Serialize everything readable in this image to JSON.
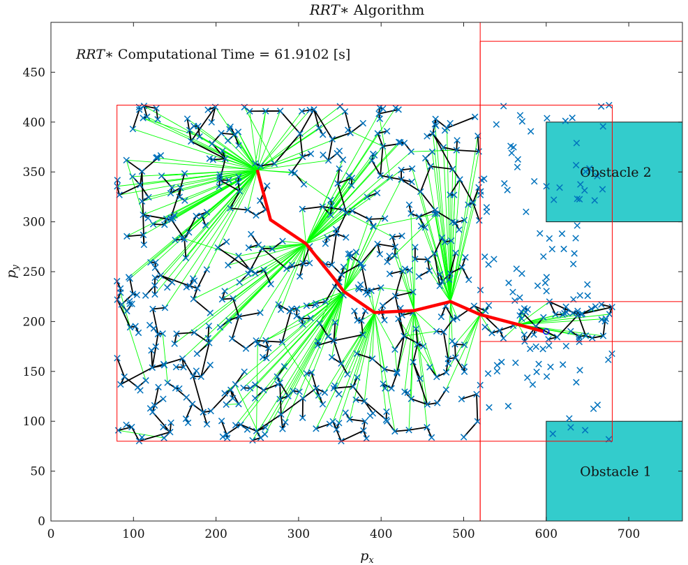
{
  "chart_data": {
    "type": "scatter",
    "title_italic": "RRT",
    "title_rest": "∗ Algorithm",
    "annotation_italic": "RRT",
    "annotation_rest": "∗ Computational Time = 61.9102 [s]",
    "xlabel_main": "p",
    "xlabel_sub": "x",
    "ylabel_main": "p",
    "ylabel_sub": "y",
    "xlim": [
      0,
      765
    ],
    "ylim": [
      0,
      500
    ],
    "xticks": [
      "0",
      "100",
      "200",
      "300",
      "400",
      "500",
      "600",
      "700"
    ],
    "yticks": [
      "0",
      "50",
      "100",
      "150",
      "200",
      "250",
      "300",
      "350",
      "400",
      "450"
    ],
    "grid": false,
    "colors": {
      "samples": "#0072BD",
      "tree_edges": "#000000",
      "rewire_edges": "#00FF00",
      "path": "#FF0000",
      "obstacle": "#33CCCC",
      "region": "#FF0000"
    },
    "obstacles": [
      {
        "label": "Obstacle 1",
        "x": [
          600,
          765
        ],
        "y": [
          0,
          100
        ]
      },
      {
        "label": "Obstacle 2",
        "x": [
          600,
          765
        ],
        "y": [
          300,
          400
        ]
      }
    ],
    "regions": [
      {
        "x": [
          80,
          680
        ],
        "y": [
          80,
          417
        ]
      },
      {
        "x": [
          520,
          765
        ],
        "y": [
          0,
          481
        ]
      },
      {
        "x": [
          520,
          765
        ],
        "y": [
          220,
          500
        ]
      },
      {
        "x": [
          520,
          765
        ],
        "y": [
          0,
          180
        ]
      }
    ],
    "path": {
      "x": [
        250,
        266,
        309,
        342,
        355,
        392,
        440,
        484,
        520,
        566,
        597
      ],
      "y": [
        352,
        302,
        278,
        244,
        230,
        209,
        211,
        220,
        207,
        197,
        190
      ]
    },
    "goal": {
      "x": 600,
      "y": 190
    },
    "seed": 7,
    "sample_count": 640
  }
}
